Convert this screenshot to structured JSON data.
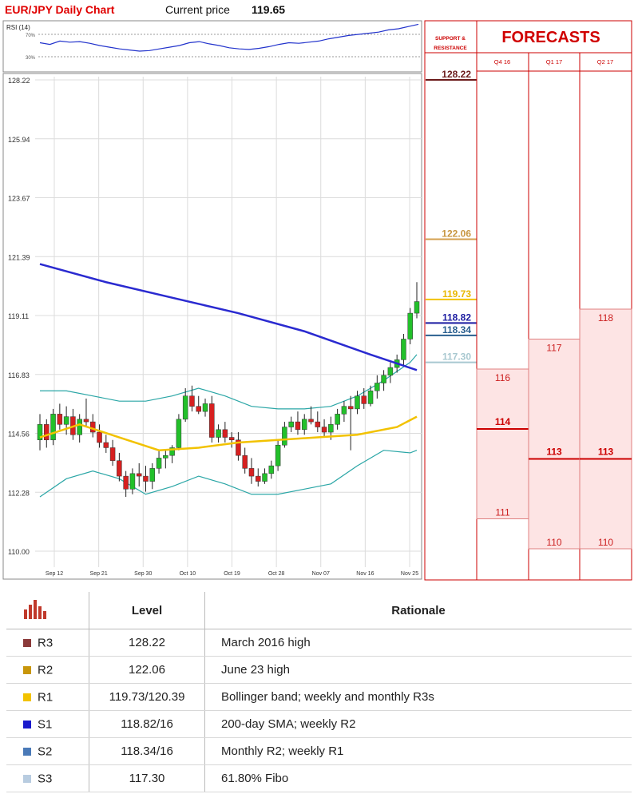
{
  "chart_data": {
    "type": "candlestick",
    "title": "EUR/JPY Daily Chart",
    "current_price_label": "Current price",
    "current_price": "119.65",
    "ylim": [
      110.0,
      128.22
    ],
    "y_ticks": [
      "128.22",
      "125.94",
      "123.67",
      "121.39",
      "119.11",
      "116.83",
      "114.56",
      "112.28",
      "110.00"
    ],
    "x_ticks": [
      "Sep 12",
      "Sep 21",
      "Sep 30",
      "Oct 10",
      "Oct 19",
      "Oct 28",
      "Nov 07",
      "Nov 16",
      "Nov 25"
    ],
    "candles": [
      {
        "o": 114.3,
        "h": 115.3,
        "l": 113.9,
        "c": 114.9
      },
      {
        "o": 114.9,
        "h": 115.1,
        "l": 114.0,
        "c": 114.3
      },
      {
        "o": 114.3,
        "h": 115.5,
        "l": 114.1,
        "c": 115.3
      },
      {
        "o": 115.3,
        "h": 115.7,
        "l": 114.7,
        "c": 114.9
      },
      {
        "o": 114.9,
        "h": 115.6,
        "l": 114.5,
        "c": 115.2
      },
      {
        "o": 115.2,
        "h": 115.5,
        "l": 114.3,
        "c": 114.5
      },
      {
        "o": 114.5,
        "h": 115.3,
        "l": 114.2,
        "c": 115.1
      },
      {
        "o": 115.1,
        "h": 115.9,
        "l": 114.8,
        "c": 115.0
      },
      {
        "o": 115.0,
        "h": 115.3,
        "l": 114.4,
        "c": 114.6
      },
      {
        "o": 114.6,
        "h": 114.9,
        "l": 114.0,
        "c": 114.2
      },
      {
        "o": 114.2,
        "h": 114.5,
        "l": 113.8,
        "c": 114.0
      },
      {
        "o": 114.0,
        "h": 114.3,
        "l": 113.3,
        "c": 113.5
      },
      {
        "o": 113.5,
        "h": 113.8,
        "l": 112.7,
        "c": 112.9
      },
      {
        "o": 112.9,
        "h": 113.1,
        "l": 112.1,
        "c": 112.4
      },
      {
        "o": 112.4,
        "h": 113.2,
        "l": 112.2,
        "c": 113.0
      },
      {
        "o": 113.0,
        "h": 113.4,
        "l": 112.5,
        "c": 112.9
      },
      {
        "o": 112.9,
        "h": 113.3,
        "l": 112.3,
        "c": 112.7
      },
      {
        "o": 112.7,
        "h": 113.4,
        "l": 112.4,
        "c": 113.2
      },
      {
        "o": 113.2,
        "h": 113.9,
        "l": 113.0,
        "c": 113.6
      },
      {
        "o": 113.6,
        "h": 113.9,
        "l": 113.2,
        "c": 113.7
      },
      {
        "o": 113.7,
        "h": 114.1,
        "l": 113.4,
        "c": 114.0
      },
      {
        "o": 114.0,
        "h": 115.3,
        "l": 113.9,
        "c": 115.1
      },
      {
        "o": 115.1,
        "h": 116.3,
        "l": 115.0,
        "c": 116.0
      },
      {
        "o": 116.0,
        "h": 116.4,
        "l": 115.4,
        "c": 115.6
      },
      {
        "o": 115.6,
        "h": 116.0,
        "l": 115.3,
        "c": 115.4
      },
      {
        "o": 115.4,
        "h": 115.9,
        "l": 115.2,
        "c": 115.7
      },
      {
        "o": 115.7,
        "h": 116.0,
        "l": 114.2,
        "c": 114.4
      },
      {
        "o": 114.4,
        "h": 114.9,
        "l": 114.2,
        "c": 114.7
      },
      {
        "o": 114.7,
        "h": 115.0,
        "l": 114.2,
        "c": 114.4
      },
      {
        "o": 114.4,
        "h": 114.6,
        "l": 114.0,
        "c": 114.3
      },
      {
        "o": 114.3,
        "h": 114.6,
        "l": 113.5,
        "c": 113.7
      },
      {
        "o": 113.7,
        "h": 114.0,
        "l": 113.0,
        "c": 113.2
      },
      {
        "o": 113.2,
        "h": 113.6,
        "l": 112.6,
        "c": 112.9
      },
      {
        "o": 112.9,
        "h": 113.2,
        "l": 112.5,
        "c": 112.7
      },
      {
        "o": 112.7,
        "h": 113.2,
        "l": 112.6,
        "c": 113.0
      },
      {
        "o": 113.0,
        "h": 113.5,
        "l": 112.8,
        "c": 113.3
      },
      {
        "o": 113.3,
        "h": 114.3,
        "l": 113.1,
        "c": 114.1
      },
      {
        "o": 114.1,
        "h": 115.0,
        "l": 114.0,
        "c": 114.8
      },
      {
        "o": 114.8,
        "h": 115.2,
        "l": 114.6,
        "c": 115.0
      },
      {
        "o": 115.0,
        "h": 115.4,
        "l": 114.5,
        "c": 114.7
      },
      {
        "o": 114.7,
        "h": 115.3,
        "l": 114.5,
        "c": 115.1
      },
      {
        "o": 115.1,
        "h": 115.6,
        "l": 114.9,
        "c": 115.0
      },
      {
        "o": 115.0,
        "h": 115.4,
        "l": 114.6,
        "c": 114.8
      },
      {
        "o": 114.8,
        "h": 115.1,
        "l": 114.4,
        "c": 114.6
      },
      {
        "o": 114.6,
        "h": 115.2,
        "l": 114.3,
        "c": 114.9
      },
      {
        "o": 114.9,
        "h": 115.5,
        "l": 114.7,
        "c": 115.3
      },
      {
        "o": 115.3,
        "h": 115.8,
        "l": 115.0,
        "c": 115.6
      },
      {
        "o": 115.6,
        "h": 116.0,
        "l": 113.9,
        "c": 115.5
      },
      {
        "o": 115.5,
        "h": 116.2,
        "l": 115.3,
        "c": 116.0
      },
      {
        "o": 116.0,
        "h": 116.3,
        "l": 115.5,
        "c": 115.7
      },
      {
        "o": 115.7,
        "h": 116.4,
        "l": 115.6,
        "c": 116.2
      },
      {
        "o": 116.2,
        "h": 116.8,
        "l": 115.9,
        "c": 116.5
      },
      {
        "o": 116.5,
        "h": 117.0,
        "l": 116.2,
        "c": 116.8
      },
      {
        "o": 116.8,
        "h": 117.3,
        "l": 116.5,
        "c": 117.1
      },
      {
        "o": 117.1,
        "h": 117.6,
        "l": 116.9,
        "c": 117.4
      },
      {
        "o": 117.4,
        "h": 118.4,
        "l": 117.2,
        "c": 118.2
      },
      {
        "o": 118.2,
        "h": 119.4,
        "l": 118.0,
        "c": 119.2
      },
      {
        "o": 119.2,
        "h": 120.4,
        "l": 119.0,
        "c": 119.65
      }
    ],
    "sma200": [
      [
        0,
        121.1
      ],
      [
        10,
        120.4
      ],
      [
        20,
        119.8
      ],
      [
        30,
        119.2
      ],
      [
        40,
        118.5
      ],
      [
        50,
        117.6
      ],
      [
        57,
        117.0
      ]
    ],
    "sma_short": [
      [
        0,
        114.4
      ],
      [
        6,
        114.9
      ],
      [
        12,
        114.4
      ],
      [
        18,
        113.9
      ],
      [
        24,
        114.0
      ],
      [
        30,
        114.2
      ],
      [
        36,
        114.3
      ],
      [
        42,
        114.4
      ],
      [
        48,
        114.5
      ],
      [
        54,
        114.8
      ],
      [
        57,
        115.2
      ]
    ],
    "bb_upper": [
      [
        0,
        116.2
      ],
      [
        4,
        116.2
      ],
      [
        8,
        116.0
      ],
      [
        12,
        115.8
      ],
      [
        16,
        115.8
      ],
      [
        20,
        116.0
      ],
      [
        24,
        116.3
      ],
      [
        28,
        116.0
      ],
      [
        32,
        115.6
      ],
      [
        36,
        115.5
      ],
      [
        40,
        115.5
      ],
      [
        44,
        115.6
      ],
      [
        48,
        116.0
      ],
      [
        52,
        116.6
      ],
      [
        56,
        117.3
      ],
      [
        57,
        117.6
      ]
    ],
    "bb_lower": [
      [
        0,
        112.1
      ],
      [
        4,
        112.8
      ],
      [
        8,
        113.1
      ],
      [
        12,
        112.8
      ],
      [
        16,
        112.2
      ],
      [
        20,
        112.5
      ],
      [
        24,
        112.9
      ],
      [
        28,
        112.6
      ],
      [
        32,
        112.2
      ],
      [
        36,
        112.2
      ],
      [
        40,
        112.4
      ],
      [
        44,
        112.6
      ],
      [
        48,
        113.3
      ],
      [
        52,
        113.9
      ],
      [
        56,
        113.8
      ],
      [
        57,
        113.9
      ]
    ],
    "rsi": {
      "label": "RSI (14)",
      "levels": [
        "70%",
        "30%"
      ],
      "values": [
        55,
        52,
        58,
        56,
        57,
        54,
        50,
        47,
        44,
        42,
        40,
        41,
        44,
        47,
        50,
        55,
        57,
        53,
        50,
        46,
        44,
        43,
        45,
        48,
        52,
        55,
        54,
        56,
        58,
        62,
        65,
        68,
        70,
        72,
        74,
        78,
        80,
        84,
        88
      ]
    },
    "support_resistance": {
      "title_line1": "SUPPORT &",
      "title_line2": "RESISTANCE",
      "levels": [
        {
          "value": 128.22,
          "label": "128.22",
          "color": "#6b1a1a",
          "text_color": "#6b1a1a"
        },
        {
          "value": 122.06,
          "label": "122.06",
          "color": "#d4a050",
          "text_color": "#c89640"
        },
        {
          "value": 119.73,
          "label": "119.73",
          "color": "#f2c200",
          "text_color": "#e8b800"
        },
        {
          "value": 118.82,
          "label": "118.82",
          "color": "#1a1aa0",
          "text_color": "#1a1aa0"
        },
        {
          "value": 118.34,
          "label": "118.34",
          "color": "#2a5f8f",
          "text_color": "#2a5f8f"
        },
        {
          "value": 117.3,
          "label": "117.30",
          "color": "#a8c8d0",
          "text_color": "#a8c8d0"
        }
      ]
    },
    "forecasts": {
      "title": "FORECASTS",
      "periods": [
        {
          "label": "Q4 16",
          "high": 116,
          "mid": 114,
          "low": 111
        },
        {
          "label": "Q1 17",
          "high": 117,
          "mid": 113,
          "low": 110
        },
        {
          "label": "Q2 17",
          "high": 118,
          "mid": 113,
          "low": 110
        }
      ]
    }
  },
  "table": {
    "header_level": "Level",
    "header_rationale": "Rationale",
    "rows": [
      {
        "code": "R3",
        "level": "128.22",
        "rationale": "March 2016 high",
        "color": "#8b3a3a"
      },
      {
        "code": "R2",
        "level": "122.06",
        "rationale": "June 23 high",
        "color": "#c8960a"
      },
      {
        "code": "R1",
        "level": "119.73/120.39",
        "rationale": "Bollinger band; weekly and monthly R3s",
        "color": "#f2c200"
      },
      {
        "code": "S1",
        "level": "118.82/16",
        "rationale": "200-day SMA; weekly R2",
        "color": "#1a1acc"
      },
      {
        "code": "S2",
        "level": "118.34/16",
        "rationale": "Monthly R2; weekly R1",
        "color": "#4a7ab8"
      },
      {
        "code": "S3",
        "level": "117.30",
        "rationale": "61.80% Fibo",
        "color": "#b8cce0"
      }
    ]
  }
}
